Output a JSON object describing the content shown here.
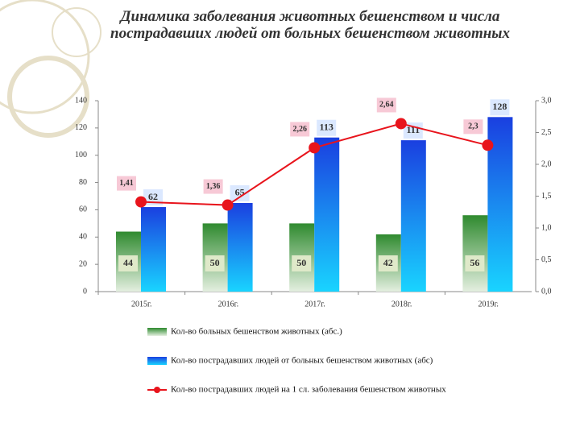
{
  "chart_data": {
    "type": "bar",
    "title": "Динамика  заболевания животных бешенством и  числа пострадавших людей от  больных бешенством животных",
    "categories": [
      "2015г.",
      "2016г.",
      "2017г.",
      "2018г.",
      "2019г."
    ],
    "series": [
      {
        "name": "Кол-во больных бешенством животных (абс.)",
        "color": "#2f8a2f",
        "values": [
          44,
          50,
          50,
          42,
          56
        ]
      },
      {
        "name": "Кол-во пострадавших людей от больных бешенством животных (абс)",
        "color": "#1a3fe0",
        "values": [
          62,
          65,
          113,
          111,
          128
        ]
      },
      {
        "name": "Кол-во пострадавших людей на 1 сл. заболевания бешенством животных",
        "color": "#e8141c",
        "type": "line",
        "axis": "y2",
        "values": [
          1.41,
          1.36,
          2.26,
          2.64,
          2.3
        ],
        "value_labels": [
          "1,41",
          "1,36",
          "2,26",
          "2,64",
          "2,3"
        ]
      }
    ],
    "ylim": [
      0,
      140
    ],
    "yticks": [
      0,
      20,
      40,
      60,
      80,
      100,
      120,
      140
    ],
    "y2lim": [
      0,
      3
    ],
    "y2ticks": [
      {
        "value": 0,
        "label": "0,0"
      },
      {
        "value": 0.5,
        "label": "0,5"
      },
      {
        "value": 1,
        "label": "1,0"
      },
      {
        "value": 1.5,
        "label": "1,5"
      },
      {
        "value": 2,
        "label": "2,0"
      },
      {
        "value": 2.5,
        "label": "2,5"
      },
      {
        "value": 3,
        "label": "3,0"
      }
    ],
    "legend": "bottom"
  }
}
